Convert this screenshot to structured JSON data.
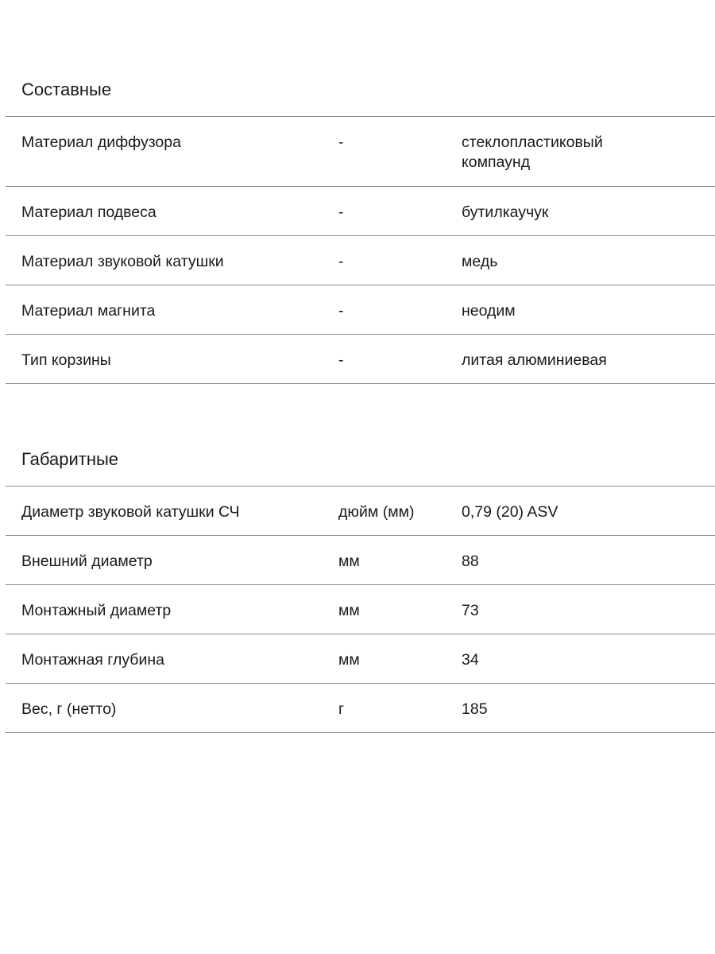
{
  "sections": [
    {
      "title": "Составные",
      "rows": [
        {
          "name": "Материал диффузора",
          "unit": "-",
          "value": "стеклопластиковый компаунд"
        },
        {
          "name": "Материал подвеса",
          "unit": "-",
          "value": "бутилкаучук"
        },
        {
          "name": "Материал звуковой катушки",
          "unit": "-",
          "value": "медь"
        },
        {
          "name": "Материал магнита",
          "unit": "-",
          "value": "неодим"
        },
        {
          "name": "Тип корзины",
          "unit": "-",
          "value": "литая алюминиевая"
        }
      ]
    },
    {
      "title": "Габаритные",
      "rows": [
        {
          "name": "Диаметр звуковой катушки СЧ",
          "unit": "дюйм (мм)",
          "value": "0,79 (20) ASV"
        },
        {
          "name": "Внешний диаметр",
          "unit": "мм",
          "value": "88"
        },
        {
          "name": "Монтажный диаметр",
          "unit": "мм",
          "value": "73"
        },
        {
          "name": "Монтажная глубина",
          "unit": "мм",
          "value": "34"
        },
        {
          "name": "Вес, г (нетто)",
          "unit": "г",
          "value": "185"
        }
      ]
    }
  ]
}
